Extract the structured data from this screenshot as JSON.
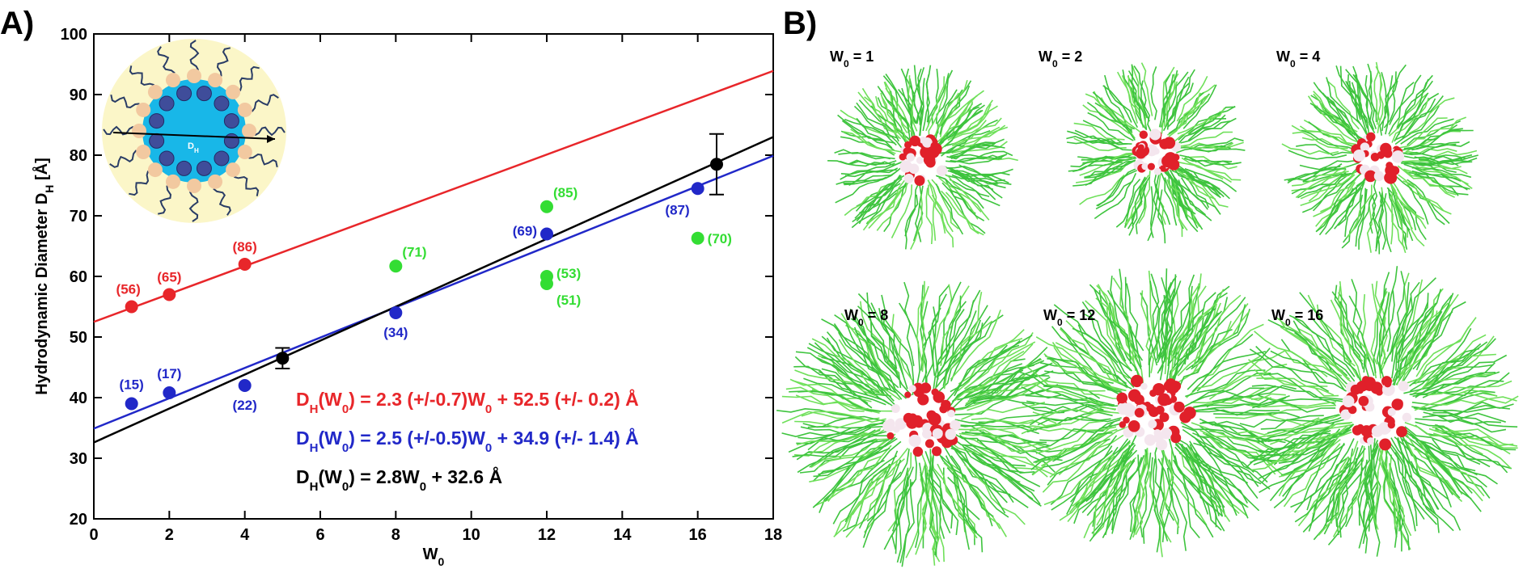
{
  "panel_labels": [
    "A)",
    "B)"
  ],
  "inset": {
    "label": [
      "D",
      "H"
    ]
  },
  "snapshots": [
    {
      "label": [
        "W",
        "0",
        " = 1"
      ]
    },
    {
      "label": [
        "W",
        "0",
        " = 2"
      ]
    },
    {
      "label": [
        "W",
        "0",
        " = 4"
      ]
    },
    {
      "label": [
        "W",
        "0",
        " = 8"
      ]
    },
    {
      "label": [
        "W",
        "0",
        " = 12"
      ]
    },
    {
      "label": [
        "W",
        "0",
        " = 16"
      ]
    }
  ],
  "chart_data": {
    "type": "scatter",
    "xlabel": [
      "W",
      "0"
    ],
    "ylabel": [
      "Hydrodynamic Diameter D",
      "H",
      " [Å]"
    ],
    "xlim": [
      0,
      18
    ],
    "ylim": [
      20,
      100
    ],
    "xticks": [
      0,
      2,
      4,
      6,
      8,
      10,
      12,
      14,
      16,
      18
    ],
    "yticks": [
      20,
      30,
      40,
      50,
      60,
      70,
      80,
      90,
      100
    ],
    "series": [
      {
        "color": "#e8262a",
        "x": [
          1,
          2,
          4
        ],
        "values": [
          55,
          57,
          62
        ],
        "labels": [
          "(56)",
          "(65)",
          "(86)"
        ]
      },
      {
        "color": "#2128c8",
        "x": [
          1,
          2,
          4,
          8,
          12,
          16
        ],
        "values": [
          39,
          40.8,
          42,
          54,
          67,
          74.5
        ],
        "labels": [
          "(15)",
          "(17)",
          "(22)",
          "(34)",
          "(69)",
          "(87)"
        ]
      },
      {
        "color": "#33dd33",
        "x": [
          8,
          12,
          12,
          12,
          16
        ],
        "values": [
          61.7,
          71.5,
          60,
          58.8,
          66.3
        ],
        "labels": [
          "(71)",
          "(85)",
          "(53)",
          "(51)",
          "(70)"
        ]
      },
      {
        "color": "#000000",
        "x": [
          5,
          16.5
        ],
        "values": [
          46.5,
          78.5
        ],
        "errors": [
          1.7,
          5
        ]
      }
    ],
    "fits": [
      {
        "color": "#e8262a",
        "slope": 2.3,
        "intercept": 52.5,
        "equation": [
          "D",
          "H",
          "(W",
          "0",
          ") = 2.3 (+/-0.7)W",
          "0",
          " + 52.5 (+/- 0.2) Å"
        ]
      },
      {
        "color": "#2128c8",
        "slope": 2.5,
        "intercept": 34.9,
        "equation": [
          "D",
          "H",
          "(W",
          "0",
          ") = 2.5 (+/-0.5)W",
          "0",
          " + 34.9 (+/- 1.4) Å"
        ]
      },
      {
        "color": "#000000",
        "slope": 2.8,
        "intercept": 32.6,
        "equation": [
          "D",
          "H",
          "(W",
          "0",
          ") = 2.8W",
          "0",
          " + 32.6 Å"
        ]
      }
    ]
  }
}
